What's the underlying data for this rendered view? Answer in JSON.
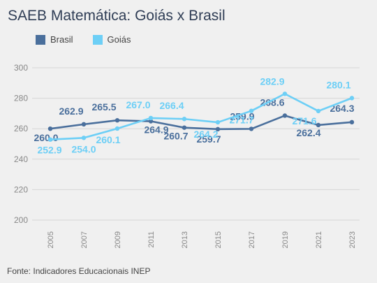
{
  "chart_data": {
    "type": "line",
    "title": "SAEB Matemática: Goiás x Brasil",
    "categories": [
      "2005",
      "2007",
      "2009",
      "2011",
      "2013",
      "2015",
      "2017",
      "2019",
      "2021",
      "2023"
    ],
    "series": [
      {
        "name": "Brasil",
        "color": "#4a6f9c",
        "values": [
          260.0,
          262.9,
          265.5,
          264.9,
          260.7,
          259.7,
          259.9,
          268.6,
          262.4,
          264.3
        ],
        "labels": [
          "260.0",
          "262.9",
          "265.5",
          "264.9",
          "260.7",
          "259.7",
          "259.9",
          "268.6",
          "262.4",
          "264.3"
        ]
      },
      {
        "name": "Goiás",
        "color": "#6dcff6",
        "values": [
          252.9,
          254.0,
          260.1,
          267.0,
          266.4,
          264.2,
          271.7,
          282.9,
          271.6,
          280.1
        ],
        "labels": [
          "252.9",
          "254.0",
          "260.1",
          "267.0",
          "266.4",
          "264.2",
          "271.7",
          "282.9",
          "271.6",
          "280.1"
        ]
      }
    ],
    "yticks": [
      "300",
      "280",
      "260",
      "240",
      "220",
      "200"
    ],
    "ylim": [
      200,
      300
    ],
    "grid": true,
    "legend": "top-left"
  },
  "source": "Fonte: Indicadores Educacionais INEP"
}
